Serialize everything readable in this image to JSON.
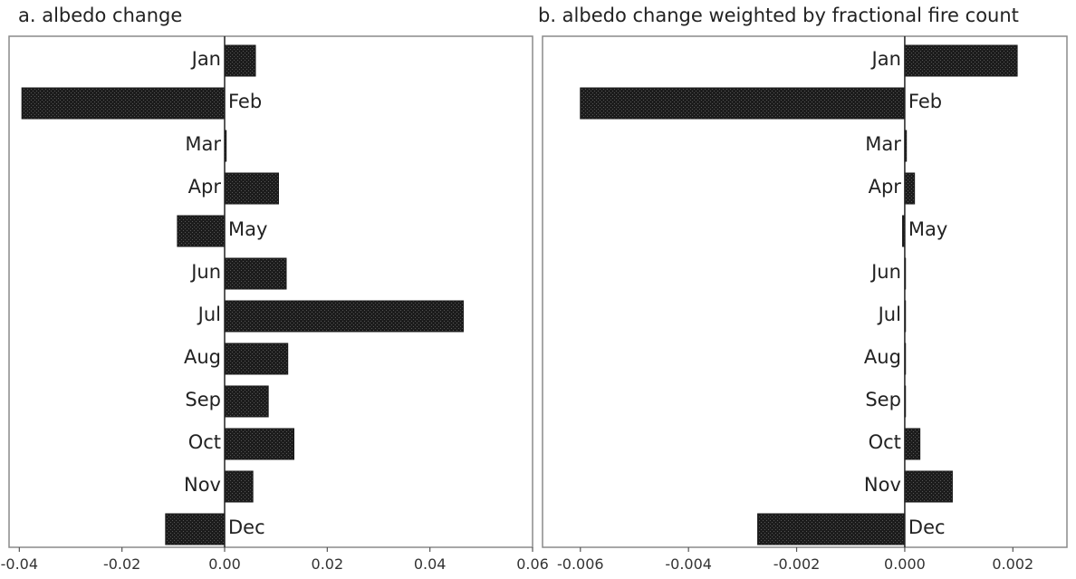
{
  "chart_data": [
    {
      "type": "bar",
      "orientation": "horizontal",
      "title": "a. albedo change",
      "xlabel": "",
      "ylabel": "",
      "categories": [
        "Jan",
        "Feb",
        "Mar",
        "Apr",
        "May",
        "Jun",
        "Jul",
        "Aug",
        "Sep",
        "Oct",
        "Nov",
        "Dec"
      ],
      "values": [
        0.006,
        -0.0395,
        0.0003,
        0.0105,
        -0.0092,
        0.012,
        0.0465,
        0.0123,
        0.0085,
        0.0135,
        0.0055,
        -0.0115
      ],
      "xlim": [
        -0.042,
        0.06
      ],
      "xticks": [
        -0.04,
        -0.02,
        0.0,
        0.02,
        0.04,
        0.06
      ],
      "xtick_labels": [
        "-0.04",
        "-0.02",
        "0.00",
        "0.02",
        "0.04",
        "0.06"
      ],
      "grid": false
    },
    {
      "type": "bar",
      "orientation": "horizontal",
      "title": "b. albedo change weighted by fractional fire count",
      "xlabel": "",
      "ylabel": "",
      "categories": [
        "Jan",
        "Feb",
        "Mar",
        "Apr",
        "May",
        "Jun",
        "Jul",
        "Aug",
        "Sep",
        "Oct",
        "Nov",
        "Dec"
      ],
      "values": [
        0.00208,
        -0.006,
        3e-05,
        0.00018,
        -4e-05,
        0.0,
        0.0,
        0.0,
        0.0,
        0.00028,
        0.00088,
        -0.00272
      ],
      "xlim": [
        -0.0067,
        0.003
      ],
      "xticks": [
        -0.006,
        -0.004,
        -0.002,
        0.0,
        0.002
      ],
      "xtick_labels": [
        "-0.006",
        "-0.004",
        "-0.002",
        "0.000",
        "0.002"
      ],
      "grid": false
    }
  ]
}
